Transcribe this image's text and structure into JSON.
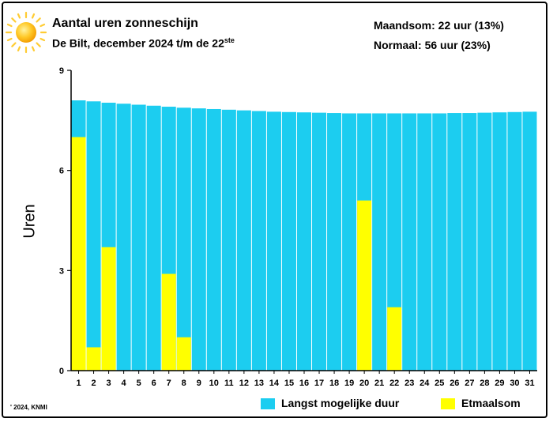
{
  "header": {
    "title": "Aantal uren zonneschijn",
    "subtitle_main": "De Bilt, december 2024 t/m de 22",
    "subtitle_sup": "ste",
    "stat_month": "Maandsom: 22 uur (13%)",
    "stat_normal": "Normaal: 56 uur (23%)"
  },
  "footer": {
    "copyright": "' 2024, KNMI"
  },
  "colors": {
    "max_duration": "#1ccdf0",
    "daily_sum": "#ffff00"
  },
  "chart_data": {
    "type": "bar",
    "ylabel": "Uren",
    "ylim": [
      0,
      9
    ],
    "yticks": [
      0,
      3,
      6,
      9
    ],
    "grid": false,
    "legend_position": "bottom-right",
    "categories": [
      "1",
      "2",
      "3",
      "4",
      "5",
      "6",
      "7",
      "8",
      "9",
      "10",
      "11",
      "12",
      "13",
      "14",
      "15",
      "16",
      "17",
      "18",
      "19",
      "20",
      "21",
      "22",
      "23",
      "24",
      "25",
      "26",
      "27",
      "28",
      "29",
      "30",
      "31"
    ],
    "series": [
      {
        "name": "Langst mogelijke duur",
        "color": "#1ccdf0",
        "values": [
          8.1,
          8.07,
          8.03,
          8.0,
          7.97,
          7.94,
          7.91,
          7.88,
          7.86,
          7.84,
          7.82,
          7.8,
          7.78,
          7.76,
          7.75,
          7.74,
          7.73,
          7.72,
          7.71,
          7.71,
          7.71,
          7.71,
          7.71,
          7.71,
          7.71,
          7.72,
          7.72,
          7.73,
          7.74,
          7.75,
          7.76
        ]
      },
      {
        "name": "Etmaalsom",
        "color": "#ffff00",
        "values": [
          7.0,
          0.7,
          3.7,
          0,
          0,
          0,
          2.9,
          1.0,
          0,
          0,
          0,
          0,
          0,
          0,
          0,
          0,
          0,
          0,
          0,
          5.1,
          0,
          1.9,
          null,
          null,
          null,
          null,
          null,
          null,
          null,
          null,
          null
        ]
      }
    ]
  }
}
